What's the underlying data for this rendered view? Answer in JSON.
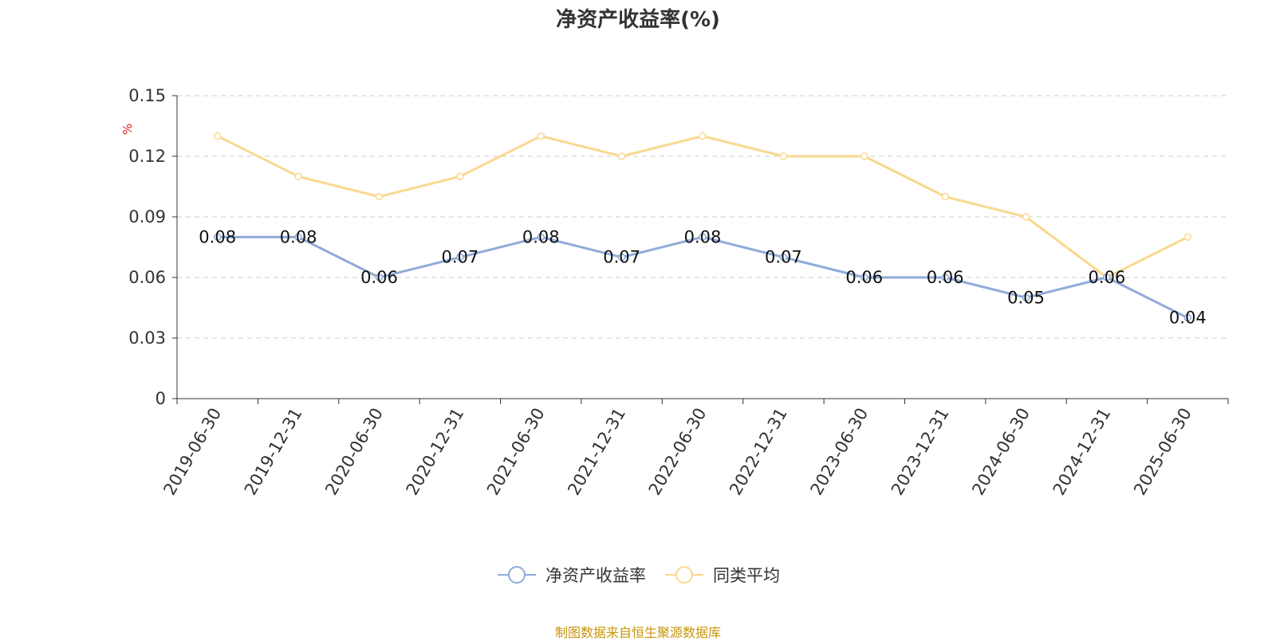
{
  "title": "净资产收益率(%)",
  "source_note": "制图数据来自恒生聚源数据库",
  "colors": {
    "series_0": "#8fabd9",
    "series_1": "#fad88f",
    "ylabel": "#e0201f",
    "grid": "#cccccc",
    "axis": "#333333"
  },
  "chart_data": {
    "type": "line",
    "title": "净资产收益率(%)",
    "xlabel": "",
    "ylabel": "%",
    "ylim": [
      0,
      0.15
    ],
    "yticks": [
      0,
      0.03,
      0.06,
      0.09,
      0.12,
      0.15
    ],
    "ytick_labels": [
      "0",
      "0.03",
      "0.06",
      "0.09",
      "0.12",
      "0.15"
    ],
    "grid": true,
    "legend_position": "bottom-center",
    "categories": [
      "2019-06-30",
      "2019-12-31",
      "2020-06-30",
      "2020-12-31",
      "2021-06-30",
      "2021-12-31",
      "2022-06-30",
      "2022-12-31",
      "2023-06-30",
      "2023-12-31",
      "2024-06-30",
      "2024-12-31",
      "2025-06-30"
    ],
    "series": [
      {
        "name": "净资产收益率",
        "values": [
          0.08,
          0.08,
          0.06,
          0.07,
          0.08,
          0.07,
          0.08,
          0.07,
          0.06,
          0.06,
          0.05,
          0.06,
          0.04
        ],
        "labels": [
          "0.08",
          "0.08",
          "0.06",
          "0.07",
          "0.08",
          "0.07",
          "0.08",
          "0.07",
          "0.06",
          "0.06",
          "0.05",
          "0.06",
          "0.04"
        ]
      },
      {
        "name": "同类平均",
        "values": [
          0.13,
          0.11,
          0.1,
          0.11,
          0.13,
          0.12,
          0.13,
          0.12,
          0.12,
          0.1,
          0.09,
          0.06,
          0.08
        ]
      }
    ]
  }
}
